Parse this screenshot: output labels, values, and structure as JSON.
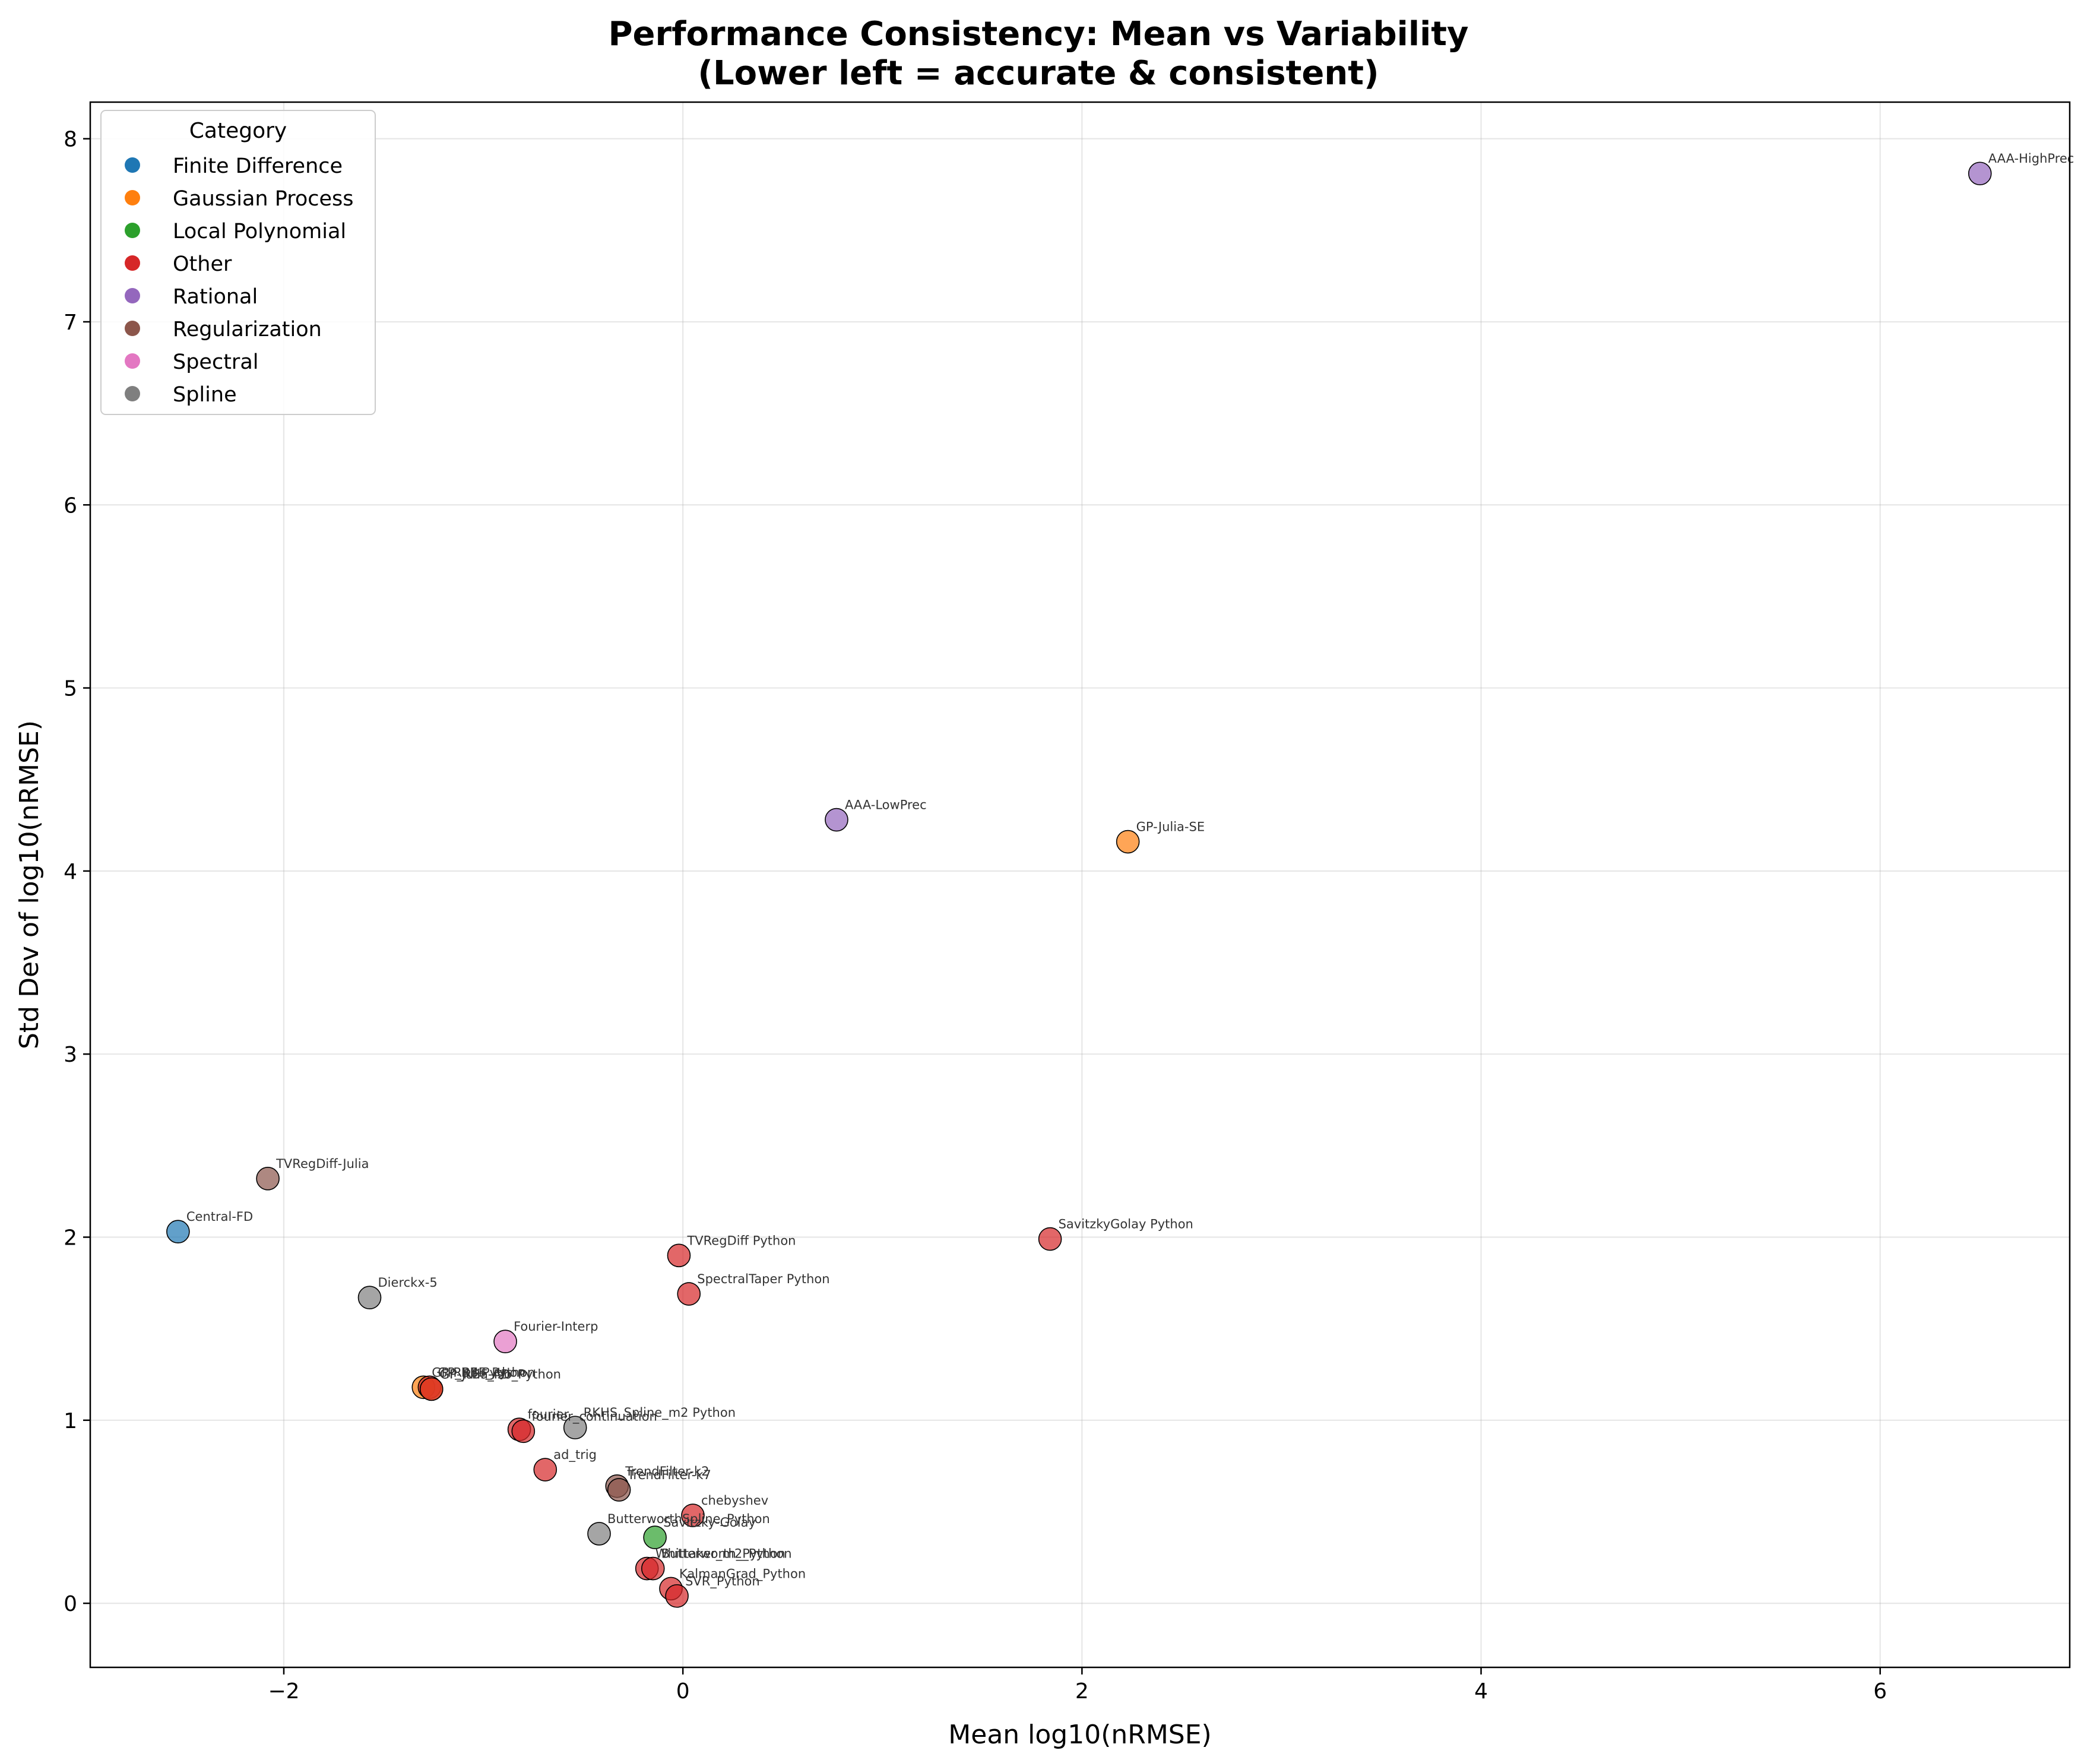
{
  "chart_data": {
    "type": "scatter",
    "title": "Performance Consistency: Mean vs Variability",
    "subtitle": "(Lower left = accurate & consistent)",
    "xlabel": "Mean log10(nRMSE)",
    "ylabel": "Std Dev of log10(nRMSE)",
    "xlim": [
      -2.97,
      6.95
    ],
    "ylim": [
      -0.35,
      8.2
    ],
    "xticks": [
      -2,
      0,
      2,
      4,
      6
    ],
    "yticks": [
      0,
      1,
      2,
      3,
      4,
      5,
      6,
      7,
      8
    ],
    "grid": true,
    "legend": {
      "title": "Category",
      "placement": "top-left",
      "entries": [
        {
          "name": "Finite Difference",
          "color": "#1f77b4"
        },
        {
          "name": "Gaussian Process",
          "color": "#ff7f0e"
        },
        {
          "name": "Local Polynomial",
          "color": "#2ca02c"
        },
        {
          "name": "Other",
          "color": "#d62728"
        },
        {
          "name": "Rational",
          "color": "#9467bd"
        },
        {
          "name": "Regularization",
          "color": "#8c564b"
        },
        {
          "name": "Spectral",
          "color": "#e377c2"
        },
        {
          "name": "Spline",
          "color": "#7f7f7f"
        }
      ]
    },
    "points": [
      {
        "label": "AAA-HighPrec",
        "category": "Rational",
        "x": 6.5,
        "y": 7.81
      },
      {
        "label": "AAA-LowPrec",
        "category": "Rational",
        "x": 0.77,
        "y": 4.28
      },
      {
        "label": "GP-Julia-SE",
        "category": "Gaussian Process",
        "x": 2.23,
        "y": 4.16
      },
      {
        "label": "TVRegDiff-Julia",
        "category": "Regularization",
        "x": -2.08,
        "y": 2.32
      },
      {
        "label": "Central-FD",
        "category": "Finite Difference",
        "x": -2.53,
        "y": 2.03
      },
      {
        "label": "SavitzkyGolay Python",
        "category": "Other",
        "x": 1.84,
        "y": 1.99
      },
      {
        "label": "TVRegDiff Python",
        "category": "Other",
        "x": -0.02,
        "y": 1.9
      },
      {
        "label": "SpectralTaper Python",
        "category": "Other",
        "x": 0.03,
        "y": 1.69
      },
      {
        "label": "Dierckx-5",
        "category": "Spline",
        "x": -1.57,
        "y": 1.67
      },
      {
        "label": "Fourier-Interp",
        "category": "Spectral",
        "x": -0.89,
        "y": 1.43
      },
      {
        "label": "GP-RBF-Python",
        "category": "Gaussian Process",
        "x": -1.3,
        "y": 1.18
      },
      {
        "label": "GP_RBF_Python",
        "category": "Other",
        "x": -1.27,
        "y": 1.18
      },
      {
        "label": "GP-Julia-AD",
        "category": "Gaussian Process",
        "x": -1.26,
        "y": 1.17
      },
      {
        "label": "GP_RBF_Iso_Python",
        "category": "Other",
        "x": -1.26,
        "y": 1.17
      },
      {
        "label": "fourier",
        "category": "Other",
        "x": -0.82,
        "y": 0.95
      },
      {
        "label": "fourier_continuation",
        "category": "Other",
        "x": -0.8,
        "y": 0.94
      },
      {
        "label": "RKHS_Spline_m2 Python",
        "category": "Spline",
        "x": -0.54,
        "y": 0.96
      },
      {
        "label": "ad_trig",
        "category": "Other",
        "x": -0.69,
        "y": 0.73
      },
      {
        "label": "TrendFilter-k2",
        "category": "Regularization",
        "x": -0.33,
        "y": 0.64
      },
      {
        "label": "TrendFilter-k7",
        "category": "Regularization",
        "x": -0.32,
        "y": 0.62
      },
      {
        "label": "chebyshev",
        "category": "Other",
        "x": 0.05,
        "y": 0.48
      },
      {
        "label": "ButterworthSpline_Python",
        "category": "Spline",
        "x": -0.42,
        "y": 0.38
      },
      {
        "label": "Savitzky-Golay",
        "category": "Local Polynomial",
        "x": -0.14,
        "y": 0.36
      },
      {
        "label": "Whittaker_m2_Python",
        "category": "Other",
        "x": -0.18,
        "y": 0.19
      },
      {
        "label": "Butterworth_Python",
        "category": "Other",
        "x": -0.15,
        "y": 0.19
      },
      {
        "label": "KalmanGrad_Python",
        "category": "Other",
        "x": -0.06,
        "y": 0.08
      },
      {
        "label": "SVR_Python",
        "category": "Other",
        "x": -0.03,
        "y": 0.04
      }
    ]
  }
}
